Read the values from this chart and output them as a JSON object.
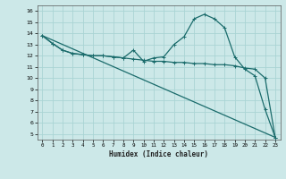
{
  "xlabel": "Humidex (Indice chaleur)",
  "background_color": "#cce8e8",
  "grid_color": "#aad4d4",
  "line_color": "#1a6b6b",
  "xlim": [
    -0.5,
    23.5
  ],
  "ylim": [
    4.5,
    16.5
  ],
  "xticks": [
    0,
    1,
    2,
    3,
    4,
    5,
    6,
    7,
    8,
    9,
    10,
    11,
    12,
    13,
    14,
    15,
    16,
    17,
    18,
    19,
    20,
    21,
    22,
    23
  ],
  "yticks": [
    5,
    6,
    7,
    8,
    9,
    10,
    11,
    12,
    13,
    14,
    15,
    16
  ],
  "series1_x": [
    0,
    1,
    2,
    3,
    4,
    5,
    6,
    7,
    8,
    9,
    10,
    11,
    12,
    13,
    14,
    15,
    16,
    17,
    18,
    19,
    20,
    21,
    22,
    23
  ],
  "series1_y": [
    13.8,
    13.1,
    12.5,
    12.2,
    12.1,
    12.0,
    12.0,
    11.9,
    11.8,
    12.5,
    11.5,
    11.8,
    11.9,
    13.0,
    13.7,
    15.3,
    15.7,
    15.3,
    14.5,
    11.9,
    10.8,
    10.2,
    7.2,
    4.7
  ],
  "series2_x": [
    0,
    1,
    2,
    3,
    4,
    5,
    6,
    7,
    8,
    9,
    10,
    11,
    12,
    13,
    14,
    15,
    16,
    17,
    18,
    19,
    20,
    21,
    22,
    23
  ],
  "series2_y": [
    13.8,
    13.1,
    12.5,
    12.2,
    12.1,
    12.0,
    12.0,
    11.9,
    11.8,
    11.7,
    11.6,
    11.5,
    11.5,
    11.4,
    11.4,
    11.3,
    11.3,
    11.2,
    11.2,
    11.1,
    10.9,
    10.8,
    10.0,
    4.7
  ],
  "series3_x": [
    0,
    23
  ],
  "series3_y": [
    13.8,
    4.7
  ]
}
